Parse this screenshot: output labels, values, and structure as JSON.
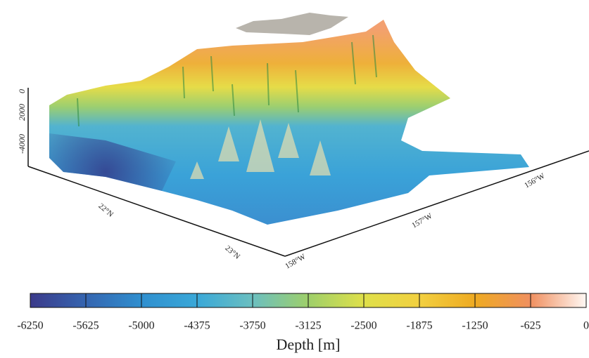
{
  "map": {
    "z_axis_labels": [
      "-4000",
      "2000",
      "0"
    ],
    "lat_labels": [
      "22°N",
      "23°N"
    ],
    "lon_labels": [
      "158°W",
      "157°W",
      "156°W"
    ]
  },
  "colorbar": {
    "label": "Depth [m]",
    "lim": [
      -6250,
      0
    ],
    "ticks": [
      -6250,
      -5625,
      -5000,
      -4375,
      -3750,
      -3125,
      -2500,
      -1875,
      -1250,
      -625,
      0
    ],
    "colors": [
      "#3b3a8a",
      "#3565b0",
      "#2f8fcf",
      "#3aa8d8",
      "#6bbfc0",
      "#9ecf6a",
      "#dfe04a",
      "#f2d040",
      "#eeaa22",
      "#f09060",
      "#fff8f4"
    ]
  }
}
